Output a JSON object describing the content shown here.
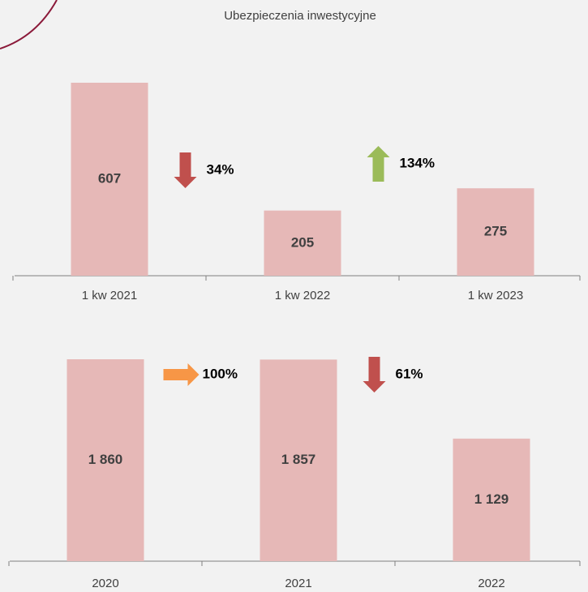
{
  "chart_data": [
    {
      "type": "bar",
      "title": "Ubezpieczenia inwestycyjne",
      "categories": [
        "1 kw 2021",
        "1 kw 2022",
        "1 kw 2023"
      ],
      "values": [
        607,
        205,
        275
      ],
      "color": "#e6b8b7",
      "annotations": [
        {
          "text": "34%",
          "direction": "down",
          "color": "#c0504d"
        },
        {
          "text": "134%",
          "direction": "up",
          "color": "#9bbb59"
        }
      ]
    },
    {
      "type": "bar",
      "categories": [
        "2020",
        "2021",
        "2022"
      ],
      "values": [
        1860,
        1857,
        1129
      ],
      "value_labels": [
        "1 860",
        "1 857",
        "1 129"
      ],
      "color": "#e6b8b7",
      "annotations": [
        {
          "text": "100%",
          "direction": "right",
          "color": "#f79646"
        },
        {
          "text": "61%",
          "direction": "down",
          "color": "#c0504d"
        }
      ]
    }
  ]
}
